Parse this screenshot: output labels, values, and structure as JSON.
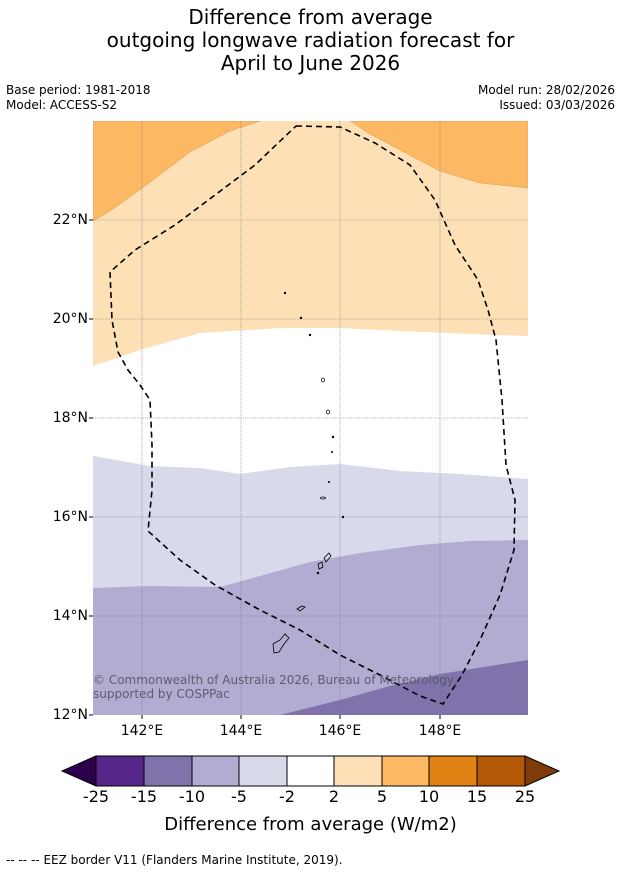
{
  "title_lines": [
    "Difference from average",
    "outgoing longwave radiation forecast for",
    "April to June 2026"
  ],
  "meta": {
    "base_period": "Base period: 1981-2018",
    "model": "Model: ACCESS-S2",
    "model_run": "Model run: 28/02/2026",
    "issued": "Issued: 03/03/2026"
  },
  "map": {
    "lat_ticks": [
      "22°N",
      "20°N",
      "18°N",
      "16°N",
      "14°N",
      "12°N"
    ],
    "lon_ticks": [
      "142°E",
      "144°E",
      "146°E",
      "148°E"
    ],
    "lat_values": [
      22,
      20,
      18,
      16,
      14,
      12
    ],
    "lon_values": [
      142,
      144,
      146,
      148
    ],
    "extent": {
      "lon_min": 141.0,
      "lon_max": 149.8,
      "lat_min": 12.0,
      "lat_max": 24.0
    },
    "copyright": "© Commonwealth of Australia 2026, Bureau of Meteorology, supported by COSPPac",
    "zone_colors": {
      "pos_5_10": "#fdb863",
      "pos_2_5": "#fee0b6",
      "near_zero": "#ffffff",
      "neg_5_2": "#d8d9ea",
      "neg_10_5": "#b2abd2",
      "neg_15_10": "#8073ac"
    }
  },
  "colorbar": {
    "title": "Difference from average (W/m2)",
    "labels": [
      "-25",
      "-15",
      "-10",
      "-5",
      "-2",
      "2",
      "5",
      "10",
      "15",
      "25"
    ],
    "colors": [
      "#542788",
      "#8073ac",
      "#b2abd2",
      "#d8daeb",
      "#ffffff",
      "#fee0b6",
      "#fdb863",
      "#e08214",
      "#b35806"
    ],
    "extend_low_color": "#2d004b",
    "extend_high_color": "#7f3b08"
  },
  "legend": {
    "marker": "-- -- --",
    "text": "EEZ border V11 (Flanders Marine Institute, 2019)."
  }
}
